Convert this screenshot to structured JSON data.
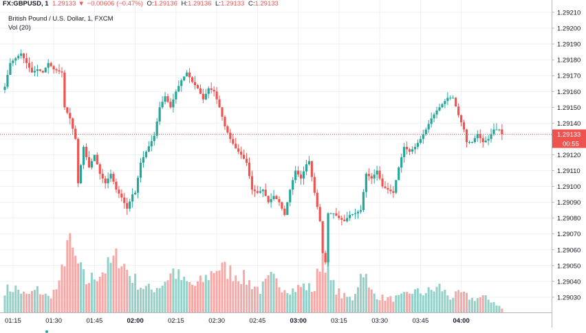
{
  "header": {
    "symbol": "FX:GBPUSD, 1",
    "last": "1.29133",
    "arrow": "▼",
    "change": "−0.00606 (−0.47%)",
    "open_label": "O:",
    "open": "1.29136",
    "high_label": "H:",
    "high": "1.29136",
    "low_label": "L:",
    "low": "1.29133",
    "close_label": "C:",
    "close": "1.29133"
  },
  "title": "British Pound / U.S. Dollar, 1, FXCM",
  "volume_label": "Vol (20)",
  "chart_data": {
    "type": "candlestick",
    "title": "British Pound / U.S. Dollar, 1, FXCM",
    "interval_minutes": 1,
    "x_start": "01:12",
    "x_ticks": [
      "01:15",
      "01:30",
      "01:45",
      "02:00",
      "02:15",
      "02:30",
      "02:45",
      "03:00",
      "03:15",
      "03:30",
      "03:45",
      "04:00"
    ],
    "bold_ticks": [
      "02:00",
      "03:00",
      "04:00"
    ],
    "y_ticks": [
      "1.29030",
      "1.29040",
      "1.29050",
      "1.29060",
      "1.29070",
      "1.29080",
      "1.29090",
      "1.29100",
      "1.29110",
      "1.29120",
      "1.29130",
      "1.29140",
      "1.29150",
      "1.29160",
      "1.29170",
      "1.29180",
      "1.29190",
      "1.29200",
      "1.29210"
    ],
    "ylim": [
      1.29025,
      1.29212
    ],
    "last_price": "1.29133",
    "countdown": "00:55",
    "price_anchors": [
      [
        0,
        1.29163
      ],
      [
        2,
        1.29178
      ],
      [
        4,
        1.29181
      ],
      [
        6,
        1.29184
      ],
      [
        8,
        1.29178
      ],
      [
        10,
        1.29172
      ],
      [
        12,
        1.29174
      ],
      [
        14,
        1.29172
      ],
      [
        16,
        1.29178
      ],
      [
        18,
        1.29174
      ],
      [
        21,
        1.29172
      ],
      [
        22,
        1.2915
      ],
      [
        24,
        1.29143
      ],
      [
        26,
        1.2913
      ],
      [
        27,
        1.29102
      ],
      [
        29,
        1.29125
      ],
      [
        31,
        1.29112
      ],
      [
        33,
        1.2912
      ],
      [
        35,
        1.29108
      ],
      [
        37,
        1.29102
      ],
      [
        39,
        1.29108
      ],
      [
        41,
        1.29098
      ],
      [
        43,
        1.29093
      ],
      [
        45,
        1.29086
      ],
      [
        47,
        1.29095
      ],
      [
        48,
        1.29096
      ],
      [
        50,
        1.29115
      ],
      [
        52,
        1.29122
      ],
      [
        55,
        1.29132
      ],
      [
        57,
        1.2915
      ],
      [
        59,
        1.29157
      ],
      [
        61,
        1.2915
      ],
      [
        63,
        1.2916
      ],
      [
        65,
        1.29167
      ],
      [
        67,
        1.29172
      ],
      [
        69,
        1.29166
      ],
      [
        71,
        1.29162
      ],
      [
        73,
        1.29155
      ],
      [
        75,
        1.29162
      ],
      [
        77,
        1.2916
      ],
      [
        79,
        1.2915
      ],
      [
        81,
        1.29138
      ],
      [
        83,
        1.2913
      ],
      [
        85,
        1.29124
      ],
      [
        87,
        1.2912
      ],
      [
        89,
        1.29115
      ],
      [
        91,
        1.29098
      ],
      [
        93,
        1.29096
      ],
      [
        95,
        1.29098
      ],
      [
        97,
        1.2909
      ],
      [
        99,
        1.29094
      ],
      [
        101,
        1.2909
      ],
      [
        103,
        1.29082
      ],
      [
        105,
        1.29098
      ],
      [
        107,
        1.2911
      ],
      [
        109,
        1.29105
      ],
      [
        111,
        1.29114
      ],
      [
        112,
        1.29116
      ],
      [
        114,
        1.29096
      ],
      [
        116,
        1.29078
      ],
      [
        117,
        1.29058
      ],
      [
        118,
        1.29052
      ],
      [
        119,
        1.29083
      ],
      [
        121,
        1.29083
      ],
      [
        123,
        1.2908
      ],
      [
        125,
        1.29078
      ],
      [
        127,
        1.29082
      ],
      [
        129,
        1.29083
      ],
      [
        131,
        1.29085
      ],
      [
        133,
        1.29108
      ],
      [
        135,
        1.29105
      ],
      [
        137,
        1.2911
      ],
      [
        139,
        1.291
      ],
      [
        141,
        1.29098
      ],
      [
        143,
        1.29096
      ],
      [
        145,
        1.29112
      ],
      [
        147,
        1.29125
      ],
      [
        149,
        1.29122
      ],
      [
        151,
        1.29125
      ],
      [
        153,
        1.2913
      ],
      [
        155,
        1.29136
      ],
      [
        157,
        1.29143
      ],
      [
        159,
        1.29148
      ],
      [
        161,
        1.29152
      ],
      [
        163,
        1.29156
      ],
      [
        165,
        1.29156
      ],
      [
        167,
        1.29145
      ],
      [
        169,
        1.29136
      ],
      [
        170,
        1.29128
      ],
      [
        172,
        1.29128
      ],
      [
        174,
        1.29133
      ],
      [
        176,
        1.29128
      ],
      [
        178,
        1.2913
      ],
      [
        180,
        1.29136
      ],
      [
        182,
        1.29136
      ],
      [
        183,
        1.29133
      ]
    ],
    "volume_anchors": [
      [
        0,
        0.3
      ],
      [
        4,
        0.32
      ],
      [
        8,
        0.22
      ],
      [
        12,
        0.3
      ],
      [
        16,
        0.2
      ],
      [
        20,
        0.35
      ],
      [
        23,
        0.95
      ],
      [
        26,
        0.7
      ],
      [
        30,
        0.4
      ],
      [
        34,
        0.5
      ],
      [
        38,
        0.6
      ],
      [
        42,
        0.75
      ],
      [
        46,
        0.5
      ],
      [
        50,
        0.35
      ],
      [
        54,
        0.3
      ],
      [
        58,
        0.38
      ],
      [
        62,
        0.55
      ],
      [
        66,
        0.4
      ],
      [
        70,
        0.35
      ],
      [
        74,
        0.45
      ],
      [
        78,
        0.6
      ],
      [
        82,
        0.55
      ],
      [
        86,
        0.5
      ],
      [
        90,
        0.4
      ],
      [
        94,
        0.3
      ],
      [
        98,
        0.45
      ],
      [
        102,
        0.35
      ],
      [
        106,
        0.3
      ],
      [
        110,
        0.35
      ],
      [
        114,
        0.3
      ],
      [
        117,
        0.85
      ],
      [
        120,
        0.4
      ],
      [
        124,
        0.22
      ],
      [
        128,
        0.18
      ],
      [
        132,
        0.6
      ],
      [
        134,
        0.3
      ],
      [
        138,
        0.2
      ],
      [
        142,
        0.18
      ],
      [
        146,
        0.2
      ],
      [
        150,
        0.28
      ],
      [
        154,
        0.26
      ],
      [
        158,
        0.3
      ],
      [
        160,
        0.34
      ],
      [
        164,
        0.2
      ],
      [
        168,
        0.25
      ],
      [
        172,
        0.18
      ],
      [
        176,
        0.2
      ],
      [
        180,
        0.14
      ],
      [
        183,
        0.05
      ]
    ]
  }
}
